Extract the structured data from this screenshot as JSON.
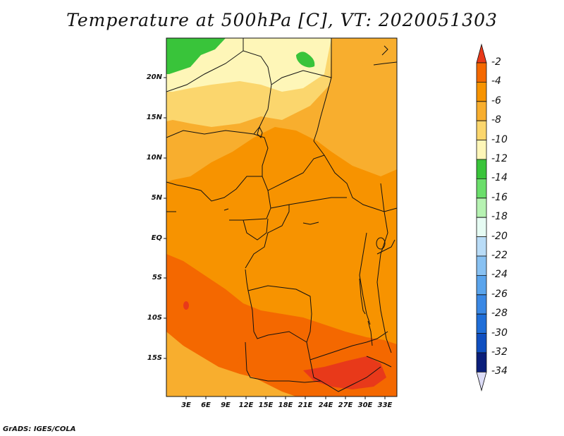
{
  "title": "Temperature at 500hPa [C], VT: 2020051303",
  "credit": "GrADS: IGES/COLA",
  "map": {
    "lat_labels": [
      "20N",
      "15N",
      "10N",
      "5N",
      "EQ",
      "5S",
      "10S",
      "15S"
    ],
    "lon_labels": [
      "3E",
      "6E",
      "9E",
      "12E",
      "15E",
      "18E",
      "21E",
      "24E",
      "27E",
      "30E",
      "33E"
    ]
  },
  "colorbar": {
    "labels": [
      "-2",
      "-4",
      "-6",
      "-8",
      "-10",
      "-12",
      "-14",
      "-16",
      "-18",
      "-20",
      "-22",
      "-24",
      "-26",
      "-28",
      "-30",
      "-32",
      "-34"
    ],
    "colors": [
      "#e8391a",
      "#f46800",
      "#f79300",
      "#f8ae2e",
      "#fbd66d",
      "#fef6b8",
      "#39c43a",
      "#6bde6b",
      "#b6f2b2",
      "#e6fbf3",
      "#b9dcf7",
      "#88c1f2",
      "#5aa4ec",
      "#3a88e4",
      "#1f6ed8",
      "#0f4fc0",
      "#0a1e7a",
      "#dcdcf6"
    ]
  },
  "colors": {
    "deep_orange": "#f46800",
    "orange": "#f79300",
    "light_orange": "#f8ae2e",
    "yellow": "#fbd66d",
    "pale_yellow": "#fef6b8",
    "green": "#39c43a",
    "red_orange": "#e8391a"
  }
}
